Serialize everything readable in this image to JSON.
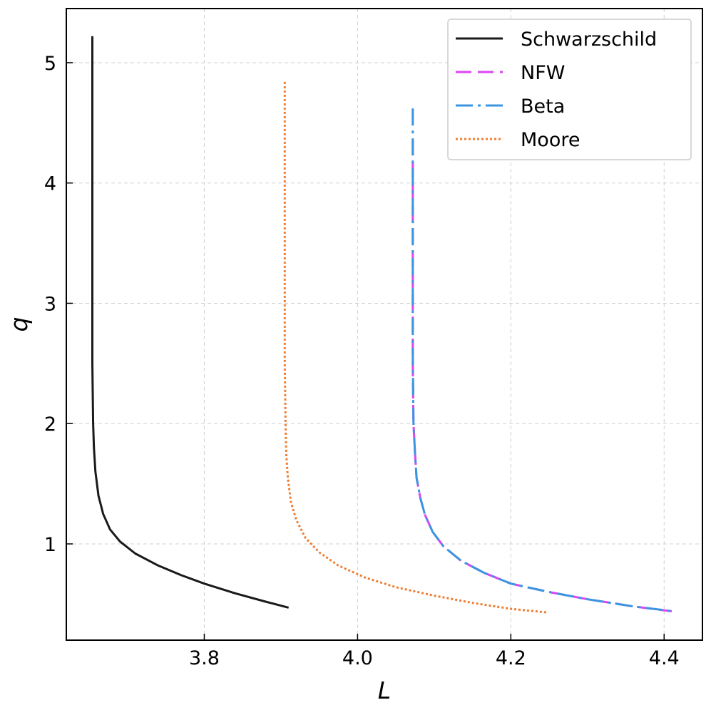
{
  "chart_data": {
    "type": "line",
    "xlabel": "L",
    "ylabel": "q",
    "xlim": [
      3.62,
      4.45
    ],
    "ylim": [
      0.2,
      5.45
    ],
    "xticks": [
      3.8,
      4.0,
      4.2,
      4.4
    ],
    "xtick_labels": [
      "3.8",
      "4.0",
      "4.2",
      "4.4"
    ],
    "yticks": [
      1,
      2,
      3,
      4,
      5
    ],
    "ytick_labels": [
      "1",
      "2",
      "3",
      "4",
      "5"
    ],
    "grid": true,
    "legend_position": "top-right",
    "series": [
      {
        "name": "Schwarzschild",
        "color": "#1a1a1a",
        "style": "solid",
        "points": [
          [
            3.654,
            5.22
          ],
          [
            3.654,
            4.5
          ],
          [
            3.654,
            3.5
          ],
          [
            3.654,
            2.5
          ],
          [
            3.655,
            2.0
          ],
          [
            3.656,
            1.8
          ],
          [
            3.658,
            1.6
          ],
          [
            3.662,
            1.4
          ],
          [
            3.668,
            1.25
          ],
          [
            3.677,
            1.12
          ],
          [
            3.69,
            1.02
          ],
          [
            3.71,
            0.92
          ],
          [
            3.74,
            0.82
          ],
          [
            3.77,
            0.74
          ],
          [
            3.8,
            0.67
          ],
          [
            3.84,
            0.59
          ],
          [
            3.88,
            0.52
          ],
          [
            3.91,
            0.47
          ]
        ]
      },
      {
        "name": "NFW",
        "color": "#d946ef",
        "style": "dashed",
        "points": [
          [
            4.072,
            4.36
          ],
          [
            4.072,
            4.0
          ],
          [
            4.072,
            3.5
          ],
          [
            4.072,
            3.0
          ],
          [
            4.072,
            2.5
          ],
          [
            4.073,
            2.0
          ],
          [
            4.075,
            1.75
          ],
          [
            4.077,
            1.55
          ],
          [
            4.082,
            1.38
          ],
          [
            4.088,
            1.24
          ],
          [
            4.098,
            1.1
          ],
          [
            4.112,
            0.98
          ],
          [
            4.135,
            0.86
          ],
          [
            4.165,
            0.76
          ],
          [
            4.2,
            0.67
          ],
          [
            4.25,
            0.6
          ],
          [
            4.3,
            0.54
          ],
          [
            4.36,
            0.48
          ],
          [
            4.41,
            0.44
          ]
        ]
      },
      {
        "name": "Beta",
        "color": "#3b95e0",
        "style": "dashdot",
        "points": [
          [
            4.072,
            4.62
          ],
          [
            4.072,
            4.3
          ],
          [
            4.072,
            3.8
          ],
          [
            4.072,
            3.2
          ],
          [
            4.072,
            2.6
          ],
          [
            4.073,
            2.0
          ],
          [
            4.075,
            1.75
          ],
          [
            4.077,
            1.55
          ],
          [
            4.082,
            1.38
          ],
          [
            4.088,
            1.24
          ],
          [
            4.098,
            1.1
          ],
          [
            4.112,
            0.98
          ],
          [
            4.135,
            0.86
          ],
          [
            4.165,
            0.76
          ],
          [
            4.2,
            0.67
          ],
          [
            4.25,
            0.6
          ],
          [
            4.3,
            0.54
          ],
          [
            4.36,
            0.48
          ],
          [
            4.412,
            0.44
          ]
        ]
      },
      {
        "name": "Moore",
        "color": "#f07d32",
        "style": "dotted",
        "points": [
          [
            3.905,
            4.84
          ],
          [
            3.905,
            4.3
          ],
          [
            3.905,
            3.5
          ],
          [
            3.905,
            2.5
          ],
          [
            3.906,
            2.0
          ],
          [
            3.907,
            1.75
          ],
          [
            3.909,
            1.55
          ],
          [
            3.913,
            1.35
          ],
          [
            3.92,
            1.2
          ],
          [
            3.932,
            1.05
          ],
          [
            3.95,
            0.93
          ],
          [
            3.975,
            0.82
          ],
          [
            4.01,
            0.72
          ],
          [
            4.05,
            0.64
          ],
          [
            4.1,
            0.57
          ],
          [
            4.15,
            0.51
          ],
          [
            4.2,
            0.46
          ],
          [
            4.248,
            0.43
          ]
        ]
      }
    ]
  }
}
